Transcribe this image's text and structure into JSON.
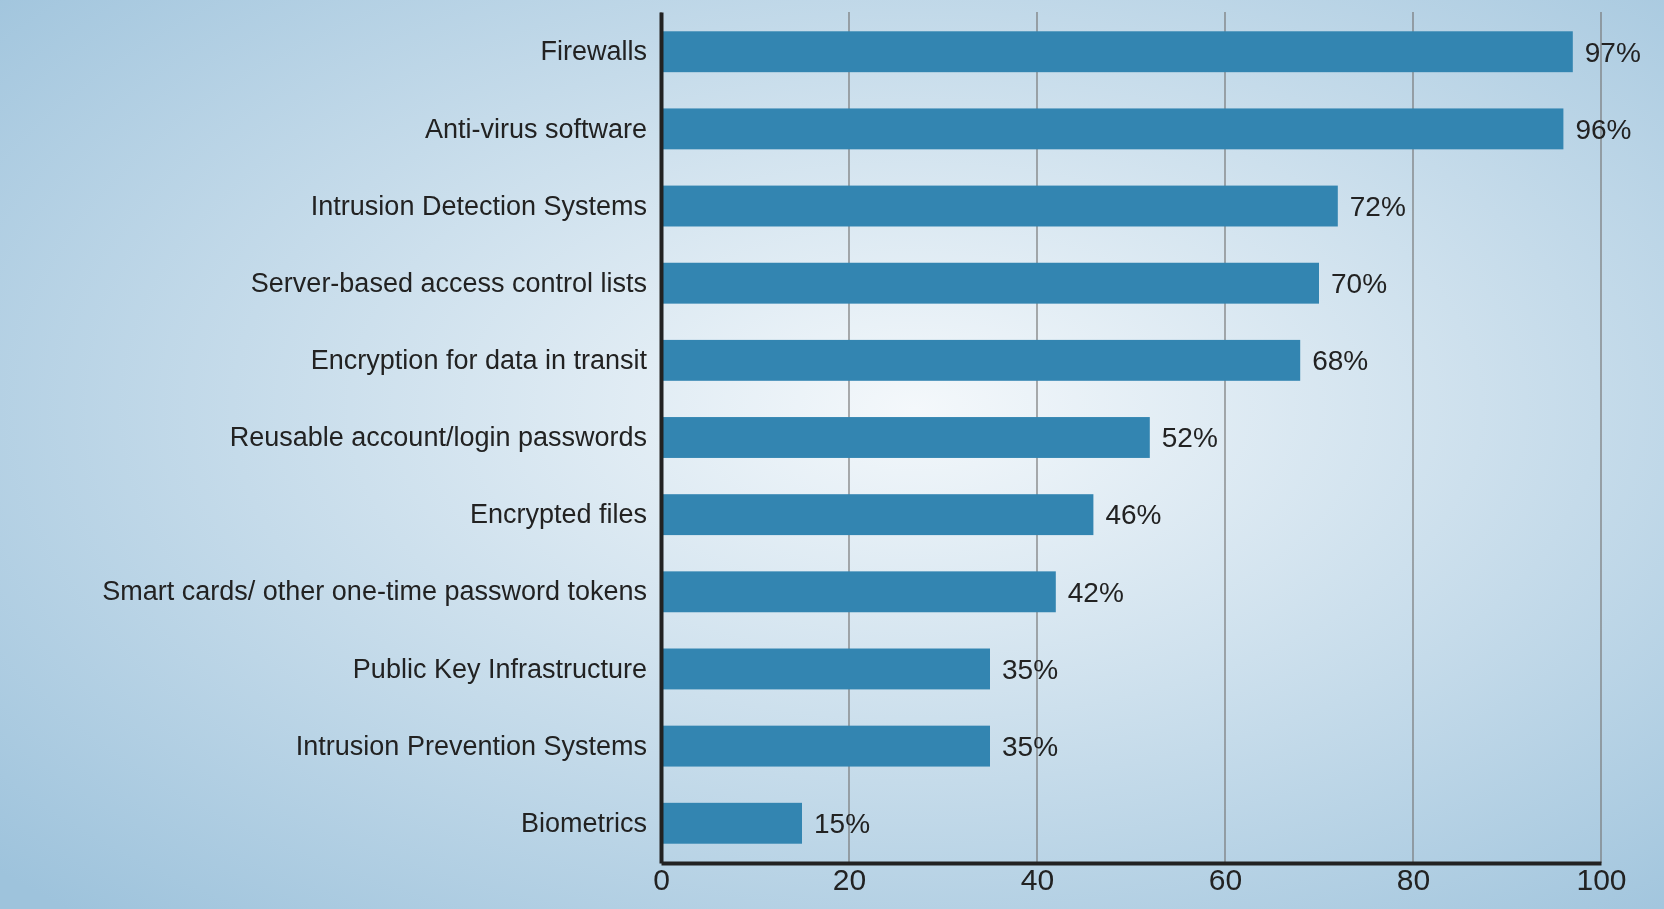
{
  "chart_data": {
    "type": "bar",
    "orientation": "horizontal",
    "categories": [
      "Firewalls",
      "Anti-virus software",
      "Intrusion Detection Systems",
      "Server-based access control lists",
      "Encryption for data in transit",
      "Reusable account/login passwords",
      "Encrypted files",
      "Smart cards/ other one-time password tokens",
      "Public Key Infrastructure",
      "Intrusion Prevention Systems",
      "Biometrics"
    ],
    "values": [
      97,
      96,
      72,
      70,
      68,
      52,
      46,
      42,
      35,
      35,
      15
    ],
    "value_labels": [
      "97%",
      "96%",
      "72%",
      "70%",
      "68%",
      "52%",
      "46%",
      "42%",
      "35%",
      "35%",
      "15%"
    ],
    "color": "#3385b1",
    "xlim": [
      0,
      100
    ],
    "xticks": [
      0,
      20,
      40,
      60,
      80,
      100
    ],
    "grid": "x"
  }
}
